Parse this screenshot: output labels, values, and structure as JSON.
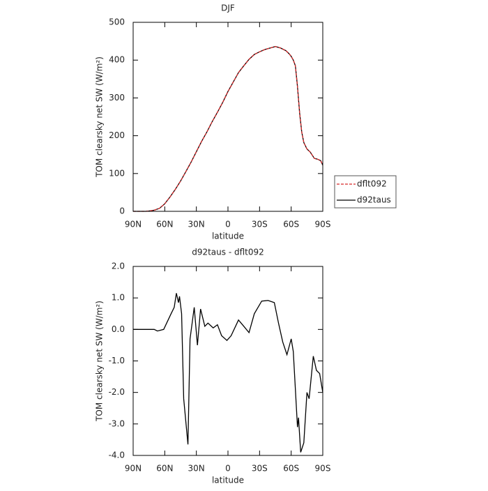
{
  "chart_data": [
    {
      "type": "line",
      "title": "DJF",
      "xlabel": "latitude",
      "ylabel": "TOM clearsky net SW (W/m²)",
      "x": [
        90,
        85,
        80,
        78,
        75,
        70,
        65,
        60,
        55,
        50,
        45,
        40,
        35,
        30,
        25,
        20,
        15,
        10,
        5,
        0,
        -5,
        -10,
        -15,
        -20,
        -25,
        -30,
        -35,
        -40,
        -45,
        -50,
        -55,
        -58,
        -60,
        -62,
        -64,
        -66,
        -68,
        -70,
        -72,
        -75,
        -78,
        -82,
        -85,
        -88,
        -90
      ],
      "series": [
        {
          "name": "d92taus",
          "color": "#000000",
          "style": "solid",
          "values": [
            0,
            0,
            0,
            0,
            1,
            3,
            8,
            20,
            38,
            58,
            80,
            105,
            130,
            158,
            185,
            210,
            237,
            262,
            288,
            317,
            342,
            367,
            385,
            402,
            415,
            422,
            428,
            432,
            436,
            432,
            425,
            417,
            410,
            400,
            385,
            330,
            260,
            210,
            182,
            165,
            157,
            140,
            138,
            134,
            122
          ]
        },
        {
          "name": "dflt092",
          "color": "#d62728",
          "style": "dashed",
          "values": [
            0,
            0,
            0,
            0,
            1,
            3,
            8,
            20,
            38,
            58,
            80,
            105,
            130,
            158,
            185,
            210,
            237,
            262,
            288,
            317,
            342,
            367,
            385,
            402,
            415,
            422,
            428,
            432,
            436,
            432,
            425,
            417,
            410,
            400,
            385,
            330,
            260,
            210,
            182,
            165,
            157,
            140,
            138,
            134,
            122
          ]
        }
      ],
      "xlim": [
        90,
        -90
      ],
      "xticks": [
        {
          "value": 90,
          "label": "90N"
        },
        {
          "value": 60,
          "label": "60N"
        },
        {
          "value": 30,
          "label": "30N"
        },
        0,
        {
          "value": -30,
          "label": "30S"
        },
        {
          "value": -60,
          "label": "60S"
        },
        {
          "value": -90,
          "label": "90S"
        }
      ],
      "ylim": [
        0,
        500
      ],
      "yticks": [
        0,
        100,
        200,
        300,
        400,
        500
      ],
      "legend": "right"
    },
    {
      "type": "line",
      "title": "d92taus - dflt092",
      "xlabel": "latitude",
      "ylabel": "TOM clearsky net SW (W/m²)",
      "x": [
        90,
        80,
        70,
        67,
        61,
        54,
        51,
        49,
        47,
        46,
        44,
        42,
        38,
        36,
        32,
        29,
        26,
        22,
        19,
        14,
        10,
        6,
        1,
        -3,
        -10,
        -15,
        -20,
        -25,
        -32,
        -38,
        -44,
        -48,
        -52,
        -56,
        -60,
        -62,
        -64,
        -66,
        -67,
        -69,
        -72,
        -75,
        -77,
        -81,
        -84,
        -87,
        -90
      ],
      "series": [
        {
          "name": "d92taus - dflt092",
          "color": "#000000",
          "style": "solid",
          "values": [
            0,
            0,
            0,
            -0.05,
            0,
            0.5,
            0.7,
            1.15,
            0.85,
            1.05,
            0.5,
            -2.2,
            -3.65,
            -0.3,
            0.7,
            -0.5,
            0.65,
            0.1,
            0.2,
            0.05,
            0.15,
            -0.2,
            -0.35,
            -0.2,
            0.3,
            0.1,
            -0.1,
            0.5,
            0.9,
            0.92,
            0.85,
            0.2,
            -0.4,
            -0.8,
            -0.3,
            -0.7,
            -1.9,
            -3.1,
            -2.8,
            -3.9,
            -3.6,
            -2.0,
            -2.2,
            -0.85,
            -1.3,
            -1.4,
            -2.0
          ]
        }
      ],
      "xlim": [
        90,
        -90
      ],
      "xticks": [
        {
          "value": 90,
          "label": "90N"
        },
        {
          "value": 60,
          "label": "60N"
        },
        {
          "value": 30,
          "label": "30N"
        },
        0,
        {
          "value": -30,
          "label": "30S"
        },
        {
          "value": -60,
          "label": "60S"
        },
        {
          "value": -90,
          "label": "90S"
        }
      ],
      "ylim": [
        -4,
        2
      ],
      "yticks": [
        {
          "value": -4,
          "label": "-4.0"
        },
        {
          "value": -3,
          "label": "-3.0"
        },
        {
          "value": -2,
          "label": "-2.0"
        },
        {
          "value": -1,
          "label": "-1.0"
        },
        {
          "value": 0,
          "label": "0.0"
        },
        {
          "value": 1,
          "label": "1.0"
        },
        {
          "value": 2,
          "label": "2.0"
        }
      ]
    }
  ]
}
